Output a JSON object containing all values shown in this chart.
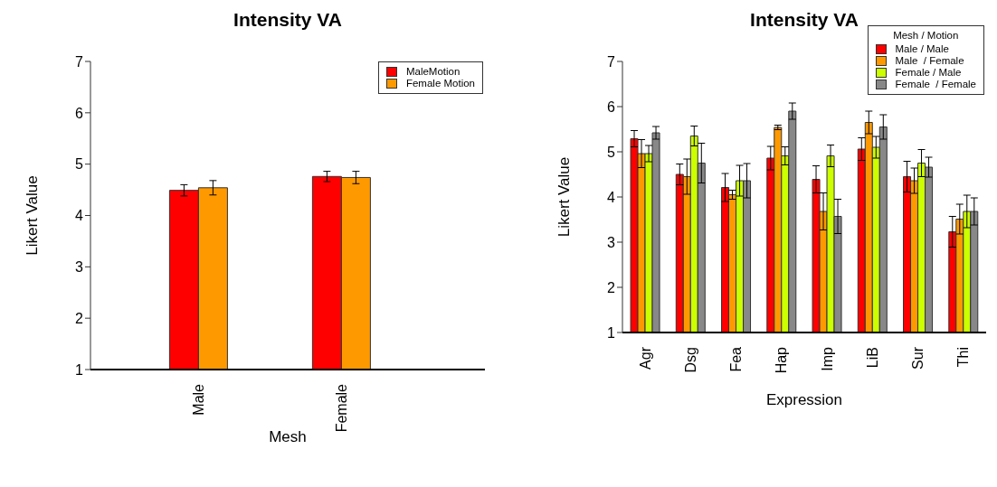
{
  "chart_data": [
    {
      "type": "bar",
      "title": "Intensity VA",
      "xlabel": "Mesh",
      "ylabel": "Likert Value",
      "categories": [
        "Male",
        "Female"
      ],
      "ylim": [
        1,
        7
      ],
      "yticks": [
        1,
        2,
        3,
        4,
        5,
        6,
        7
      ],
      "legend": "top right",
      "series": [
        {
          "name": "MaleMotion",
          "color": "#ff0000",
          "values": [
            4.49,
            4.76
          ],
          "errors": [
            0.11,
            0.1
          ]
        },
        {
          "name": "Female Motion",
          "color": "#ff9900",
          "values": [
            4.54,
            4.74
          ],
          "errors": [
            0.14,
            0.12
          ]
        }
      ]
    },
    {
      "type": "bar",
      "title": "Intensity VA",
      "xlabel": "Expression",
      "ylabel": "Likert Value",
      "legend_title": "Mesh / Motion",
      "categories": [
        "Agr",
        "Dsg",
        "Fea",
        "Hap",
        "Imp",
        "LiB",
        "Sur",
        "Thi"
      ],
      "ylim": [
        1,
        7
      ],
      "yticks": [
        1,
        2,
        3,
        4,
        5,
        6,
        7
      ],
      "legend": "top right",
      "series": [
        {
          "name": "Male / Male",
          "color": "#ff0000",
          "values": [
            5.29,
            4.5,
            4.21,
            4.86,
            4.39,
            5.06,
            4.45,
            3.23
          ],
          "errors": [
            0.18,
            0.23,
            0.31,
            0.26,
            0.3,
            0.25,
            0.34,
            0.34
          ]
        },
        {
          "name": "Male  / Female",
          "color": "#ff9900",
          "values": [
            4.96,
            4.45,
            4.05,
            5.54,
            3.68,
            5.65,
            4.36,
            3.51
          ],
          "errors": [
            0.31,
            0.39,
            0.1,
            0.05,
            0.41,
            0.25,
            0.28,
            0.33
          ]
        },
        {
          "name": "Female / Male",
          "color": "#ccff00",
          "values": [
            4.96,
            5.35,
            4.36,
            4.91,
            4.91,
            5.1,
            4.75,
            3.68
          ],
          "errors": [
            0.18,
            0.22,
            0.34,
            0.2,
            0.24,
            0.24,
            0.3,
            0.36
          ]
        },
        {
          "name": "Female  / Female",
          "color": "#888888",
          "values": [
            5.42,
            4.75,
            4.36,
            5.9,
            3.57,
            5.55,
            4.66,
            3.68
          ],
          "errors": [
            0.14,
            0.44,
            0.38,
            0.18,
            0.38,
            0.27,
            0.22,
            0.3
          ]
        }
      ]
    }
  ]
}
